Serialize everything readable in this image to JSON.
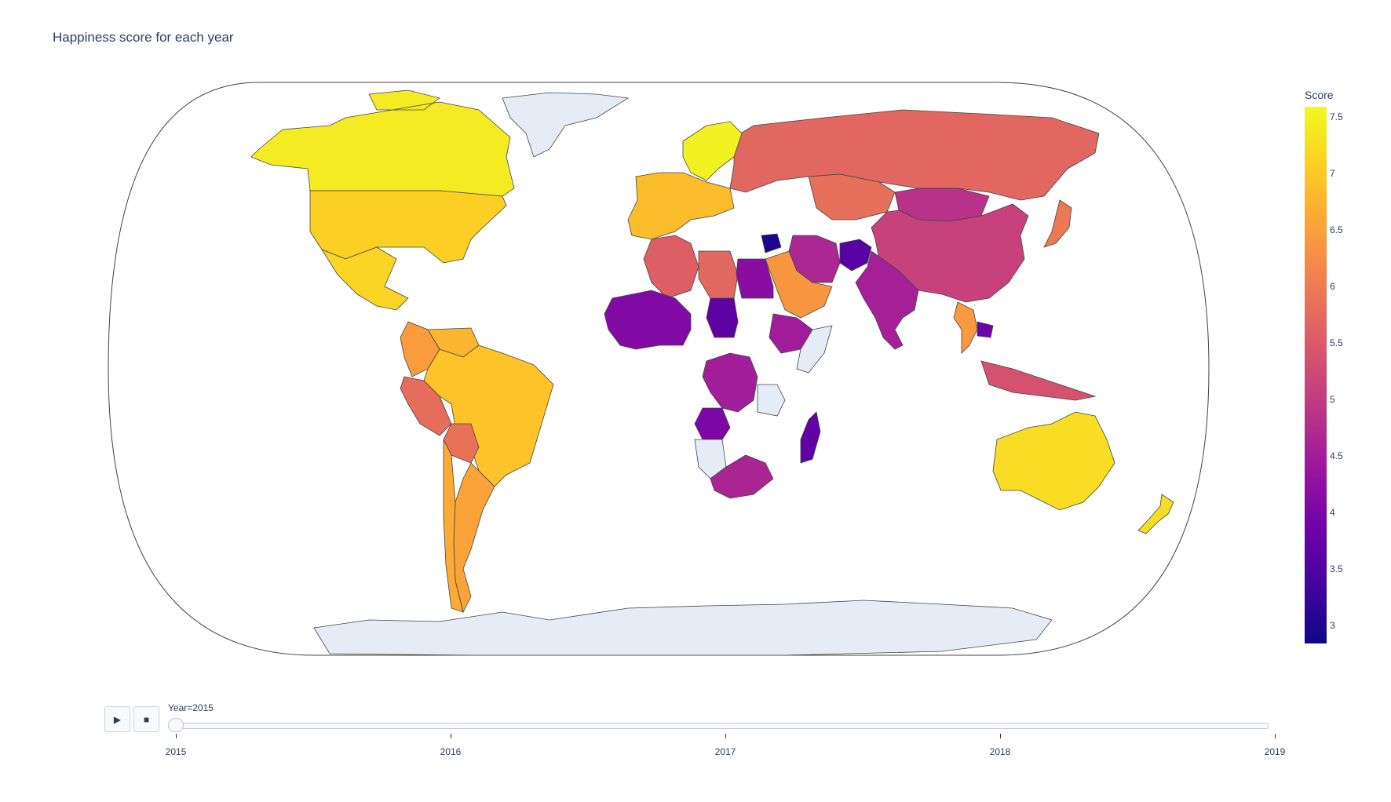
{
  "title": "Happiness score for each year",
  "colorbar": {
    "title": "Score",
    "ticks": [
      "7.5",
      "7",
      "6.5",
      "6",
      "5.5",
      "5",
      "4.5",
      "4",
      "3.5",
      "3"
    ],
    "range": [
      2.84,
      7.59
    ],
    "colorscale": [
      "#0d0887",
      "#46039f",
      "#7201a8",
      "#9c179e",
      "#bd3786",
      "#d8576b",
      "#ed7953",
      "#fb9f3a",
      "#fdca26",
      "#f0f921"
    ]
  },
  "slider": {
    "current_label": "Year=2015",
    "years": [
      "2015",
      "2016",
      "2017",
      "2018",
      "2019"
    ],
    "selected_index": 0
  },
  "controls": {
    "play_icon": "play-icon",
    "stop_icon": "stop-icon"
  },
  "map_colors": {
    "ocean": "#ffffff",
    "no_data": "#e5ecf6",
    "border": "#444444"
  },
  "chart_data": {
    "type": "choropleth",
    "title": "Happiness score for each year",
    "color_axis_label": "Score",
    "frame": "2015",
    "regions": [
      {
        "name": "Canada",
        "score": 7.43
      },
      {
        "name": "USA",
        "score": 7.12
      },
      {
        "name": "Mexico",
        "score": 7.19
      },
      {
        "name": "Brazil",
        "score": 6.98
      },
      {
        "name": "Argentina",
        "score": 6.57
      },
      {
        "name": "Peru",
        "score": 5.82
      },
      {
        "name": "Colombia",
        "score": 6.48
      },
      {
        "name": "Venezuela",
        "score": 6.81
      },
      {
        "name": "Bolivia",
        "score": 5.89
      },
      {
        "name": "Chile",
        "score": 6.67
      },
      {
        "name": "Greenland",
        "score": null
      },
      {
        "name": "Russia",
        "score": 5.72
      },
      {
        "name": "Kazakhstan",
        "score": 5.86
      },
      {
        "name": "Mongolia",
        "score": 4.87
      },
      {
        "name": "China",
        "score": 5.14
      },
      {
        "name": "Japan",
        "score": 5.99
      },
      {
        "name": "India",
        "score": 4.57
      },
      {
        "name": "Afghanistan",
        "score": 3.58
      },
      {
        "name": "Iran",
        "score": 4.69
      },
      {
        "name": "Saudi Arabia",
        "score": 6.41
      },
      {
        "name": "Thailand",
        "score": 6.46
      },
      {
        "name": "Cambodia",
        "score": 3.82
      },
      {
        "name": "Indonesia",
        "score": 5.4
      },
      {
        "name": "Australia",
        "score": 7.28
      },
      {
        "name": "New Zealand",
        "score": 7.29
      },
      {
        "name": "Nordic Europe",
        "score": 7.5
      },
      {
        "name": "Western Europe",
        "score": 6.9
      },
      {
        "name": "Algeria",
        "score": 5.6
      },
      {
        "name": "Libya",
        "score": 5.75
      },
      {
        "name": "Egypt",
        "score": 4.19
      },
      {
        "name": "West Africa",
        "score": 4.1
      },
      {
        "name": "Chad",
        "score": 3.67
      },
      {
        "name": "DR Congo",
        "score": 4.52
      },
      {
        "name": "Angola",
        "score": 4.03
      },
      {
        "name": "Namibia",
        "score": null
      },
      {
        "name": "South Africa",
        "score": 4.64
      },
      {
        "name": "Madagascar",
        "score": 3.68
      },
      {
        "name": "Ethiopia",
        "score": 4.51
      },
      {
        "name": "Somalia",
        "score": null
      },
      {
        "name": "Tanzania",
        "score": null
      },
      {
        "name": "Syria",
        "score": 3.01
      },
      {
        "name": "Antarctica",
        "score": null
      }
    ]
  }
}
